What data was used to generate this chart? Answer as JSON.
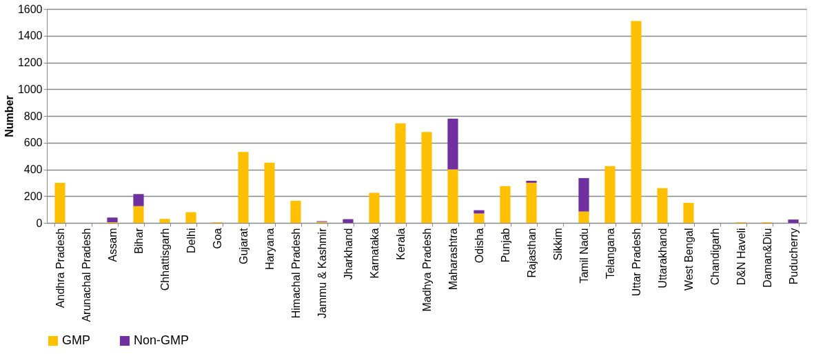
{
  "chart_data": {
    "type": "bar",
    "ylabel": "Number",
    "stacked": true,
    "categories": [
      "Andhra Pradesh",
      "Arunachal Pradesh",
      "Assam",
      "Bihar",
      "Chhattisgarh",
      "Delhi",
      "Goa",
      "Gujarat",
      "Haryana",
      "Himachal Pradesh",
      "Jammu & Kashmir",
      "Jharkhand",
      "Karnataka",
      "Kerala",
      "Madhya Pradesh",
      "Maharashtra",
      "Odisha",
      "Punjab",
      "Rajasthan",
      "Sikkim",
      "Tamil Nadu",
      "Telangana",
      "Uttar Pradesh",
      "Uttarakhand",
      "West Bengal",
      "Chandigarh",
      "D&N Haveli",
      "Daman&Diu",
      "Puducherry"
    ],
    "series": [
      {
        "name": "GMP",
        "color": "#ffc000",
        "values": [
          300,
          0,
          5,
          125,
          30,
          80,
          5,
          530,
          450,
          165,
          8,
          0,
          225,
          745,
          680,
          400,
          70,
          275,
          300,
          0,
          85,
          425,
          1510,
          260,
          150,
          0,
          5,
          5,
          0
        ]
      },
      {
        "name": "Non-GMP",
        "color": "#7030a0",
        "values": [
          0,
          0,
          35,
          90,
          0,
          0,
          0,
          0,
          0,
          0,
          5,
          28,
          0,
          0,
          0,
          380,
          25,
          0,
          15,
          0,
          250,
          0,
          0,
          0,
          0,
          0,
          0,
          0,
          25
        ]
      }
    ],
    "ylim": [
      0,
      1600
    ],
    "yticks": [
      0,
      200,
      400,
      600,
      800,
      1000,
      1200,
      1400,
      1600
    ],
    "grid": "y",
    "legend": "bottom"
  }
}
